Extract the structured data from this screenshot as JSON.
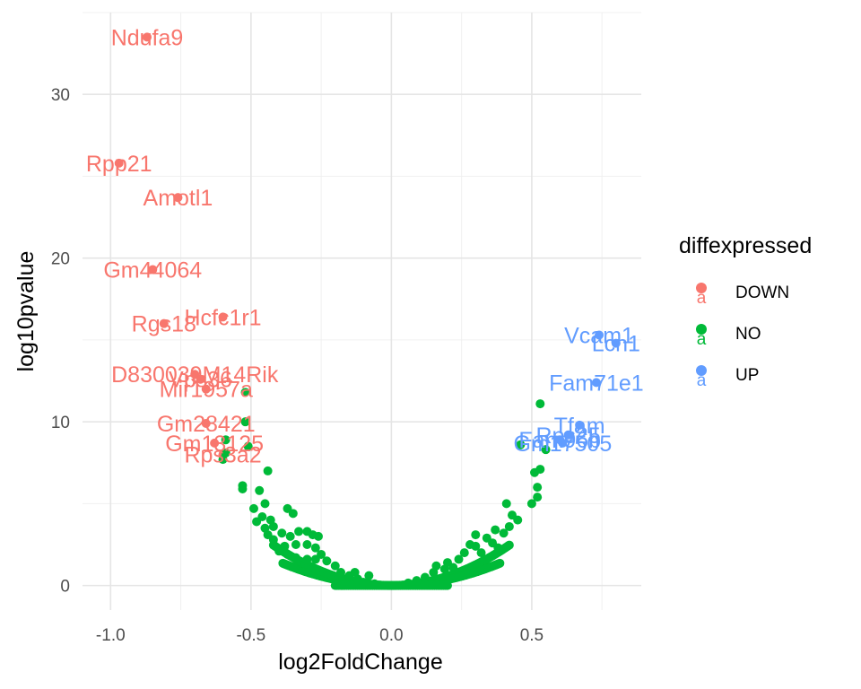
{
  "chart_data": {
    "type": "scatter",
    "title": "",
    "xlabel": "log2FoldChange",
    "ylabel": "log10pvalue",
    "xlim": [
      -1.1,
      0.89
    ],
    "ylim": [
      -1.5,
      35.0
    ],
    "x_ticks": [
      -1.0,
      -0.5,
      0.0,
      0.5
    ],
    "x_tick_labels": [
      "-1.0",
      "-0.5",
      "0.0",
      "0.5"
    ],
    "y_ticks": [
      0,
      10,
      20,
      30
    ],
    "y_tick_labels": [
      "0",
      "10",
      "20",
      "30"
    ],
    "grid": true,
    "legend": {
      "title": "diffexpressed",
      "position": "right",
      "entries": [
        {
          "label": "DOWN",
          "color": "#F8766D"
        },
        {
          "label": "NO",
          "color": "#00BA38"
        },
        {
          "label": "UP",
          "color": "#619CFF"
        }
      ]
    },
    "series": [
      {
        "name": "DOWN",
        "color": "#F8766D",
        "points": [
          {
            "x": -0.87,
            "y": 33.5,
            "label": "Ndufa9"
          },
          {
            "x": -0.97,
            "y": 25.8,
            "label": "Rpp21"
          },
          {
            "x": -0.76,
            "y": 23.7,
            "label": "Amotl1"
          },
          {
            "x": -0.85,
            "y": 19.3,
            "label": "Gm44064"
          },
          {
            "x": -0.6,
            "y": 16.4,
            "label": "Hcfc1r1"
          },
          {
            "x": -0.81,
            "y": 16.0,
            "label": "Rgs18"
          },
          {
            "x": -0.7,
            "y": 12.9,
            "label": "D830039M14Rik"
          },
          {
            "x": -0.68,
            "y": 12.6,
            "label": "Vps36"
          },
          {
            "x": -0.66,
            "y": 12.0,
            "label": "Mir1957a"
          },
          {
            "x": -0.66,
            "y": 9.9,
            "label": "Gm28421"
          },
          {
            "x": -0.63,
            "y": 8.7,
            "label": "Gm13125"
          },
          {
            "x": -0.6,
            "y": 8.0,
            "label": "Rps3a2"
          }
        ]
      },
      {
        "name": "NO",
        "color": "#00BA38",
        "points": [
          {
            "x": -0.52,
            "y": 11.8
          },
          {
            "x": -0.52,
            "y": 10.0
          },
          {
            "x": -0.51,
            "y": 8.5
          },
          {
            "x": -0.59,
            "y": 8.9
          },
          {
            "x": -0.6,
            "y": 7.7
          },
          {
            "x": -0.59,
            "y": 8.1
          },
          {
            "x": -0.44,
            "y": 7.0
          },
          {
            "x": -0.47,
            "y": 5.8
          },
          {
            "x": -0.53,
            "y": 6.1
          },
          {
            "x": -0.53,
            "y": 5.9
          },
          {
            "x": -0.45,
            "y": 5.0
          },
          {
            "x": -0.49,
            "y": 4.7
          },
          {
            "x": -0.46,
            "y": 4.2
          },
          {
            "x": -0.48,
            "y": 3.9
          },
          {
            "x": -0.43,
            "y": 4.0
          },
          {
            "x": -0.45,
            "y": 3.5
          },
          {
            "x": -0.42,
            "y": 3.6
          },
          {
            "x": -0.44,
            "y": 3.1
          },
          {
            "x": -0.42,
            "y": 2.8
          },
          {
            "x": -0.37,
            "y": 4.7
          },
          {
            "x": -0.35,
            "y": 4.4
          },
          {
            "x": -0.39,
            "y": 3.2
          },
          {
            "x": -0.36,
            "y": 3.0
          },
          {
            "x": -0.33,
            "y": 3.3
          },
          {
            "x": -0.3,
            "y": 3.3
          },
          {
            "x": -0.28,
            "y": 3.1
          },
          {
            "x": -0.26,
            "y": 3.0
          },
          {
            "x": -0.38,
            "y": 2.4
          },
          {
            "x": -0.34,
            "y": 2.5
          },
          {
            "x": -0.3,
            "y": 2.5
          },
          {
            "x": -0.27,
            "y": 2.3
          },
          {
            "x": -0.4,
            "y": 2.1
          },
          {
            "x": -0.37,
            "y": 1.9
          },
          {
            "x": -0.34,
            "y": 1.7
          },
          {
            "x": -0.3,
            "y": 1.6
          },
          {
            "x": -0.27,
            "y": 1.6
          },
          {
            "x": -0.25,
            "y": 1.9
          },
          {
            "x": -0.23,
            "y": 1.5
          },
          {
            "x": -0.2,
            "y": 1.2
          },
          {
            "x": -0.18,
            "y": 0.8
          },
          {
            "x": -0.15,
            "y": 0.6
          },
          {
            "x": -0.12,
            "y": 0.4
          },
          {
            "x": -0.1,
            "y": 0.2
          },
          {
            "x": -0.06,
            "y": 0.1
          },
          {
            "x": -0.13,
            "y": 0.8
          },
          {
            "x": -0.08,
            "y": 0.6
          },
          {
            "x": 0.53,
            "y": 11.1
          },
          {
            "x": 0.46,
            "y": 8.6
          },
          {
            "x": 0.55,
            "y": 8.3
          },
          {
            "x": 0.53,
            "y": 7.1
          },
          {
            "x": 0.51,
            "y": 6.9
          },
          {
            "x": 0.52,
            "y": 6.0
          },
          {
            "x": 0.52,
            "y": 5.4
          },
          {
            "x": 0.41,
            "y": 5.0
          },
          {
            "x": 0.5,
            "y": 5.0
          },
          {
            "x": 0.43,
            "y": 4.3
          },
          {
            "x": 0.45,
            "y": 4.0
          },
          {
            "x": 0.42,
            "y": 3.6
          },
          {
            "x": 0.4,
            "y": 3.2
          },
          {
            "x": 0.37,
            "y": 3.4
          },
          {
            "x": 0.3,
            "y": 3.1
          },
          {
            "x": 0.34,
            "y": 2.9
          },
          {
            "x": 0.28,
            "y": 2.5
          },
          {
            "x": 0.3,
            "y": 2.4
          },
          {
            "x": 0.36,
            "y": 2.6
          },
          {
            "x": 0.38,
            "y": 2.3
          },
          {
            "x": 0.32,
            "y": 2.0
          },
          {
            "x": 0.26,
            "y": 2.0
          },
          {
            "x": 0.24,
            "y": 1.6
          },
          {
            "x": 0.2,
            "y": 1.4
          },
          {
            "x": 0.19,
            "y": 1.0
          },
          {
            "x": 0.15,
            "y": 0.8
          },
          {
            "x": 0.12,
            "y": 0.5
          },
          {
            "x": 0.09,
            "y": 0.3
          },
          {
            "x": 0.06,
            "y": 0.15
          },
          {
            "x": 0.16,
            "y": 1.2
          },
          {
            "x": 0.22,
            "y": 1.1
          }
        ]
      },
      {
        "name": "UP",
        "color": "#619CFF",
        "points": [
          {
            "x": 0.74,
            "y": 15.3,
            "label": "Vcam1"
          },
          {
            "x": 0.8,
            "y": 14.8,
            "label": "Lcn1"
          },
          {
            "x": 0.73,
            "y": 12.4,
            "label": "Fam71e1"
          },
          {
            "x": 0.67,
            "y": 9.8,
            "label": "Tfam"
          },
          {
            "x": 0.63,
            "y": 9.2,
            "label": "Rps25"
          },
          {
            "x": 0.6,
            "y": 8.9,
            "label": "Fam96b"
          },
          {
            "x": 0.61,
            "y": 8.7,
            "label": "Gm17505"
          }
        ]
      }
    ]
  }
}
